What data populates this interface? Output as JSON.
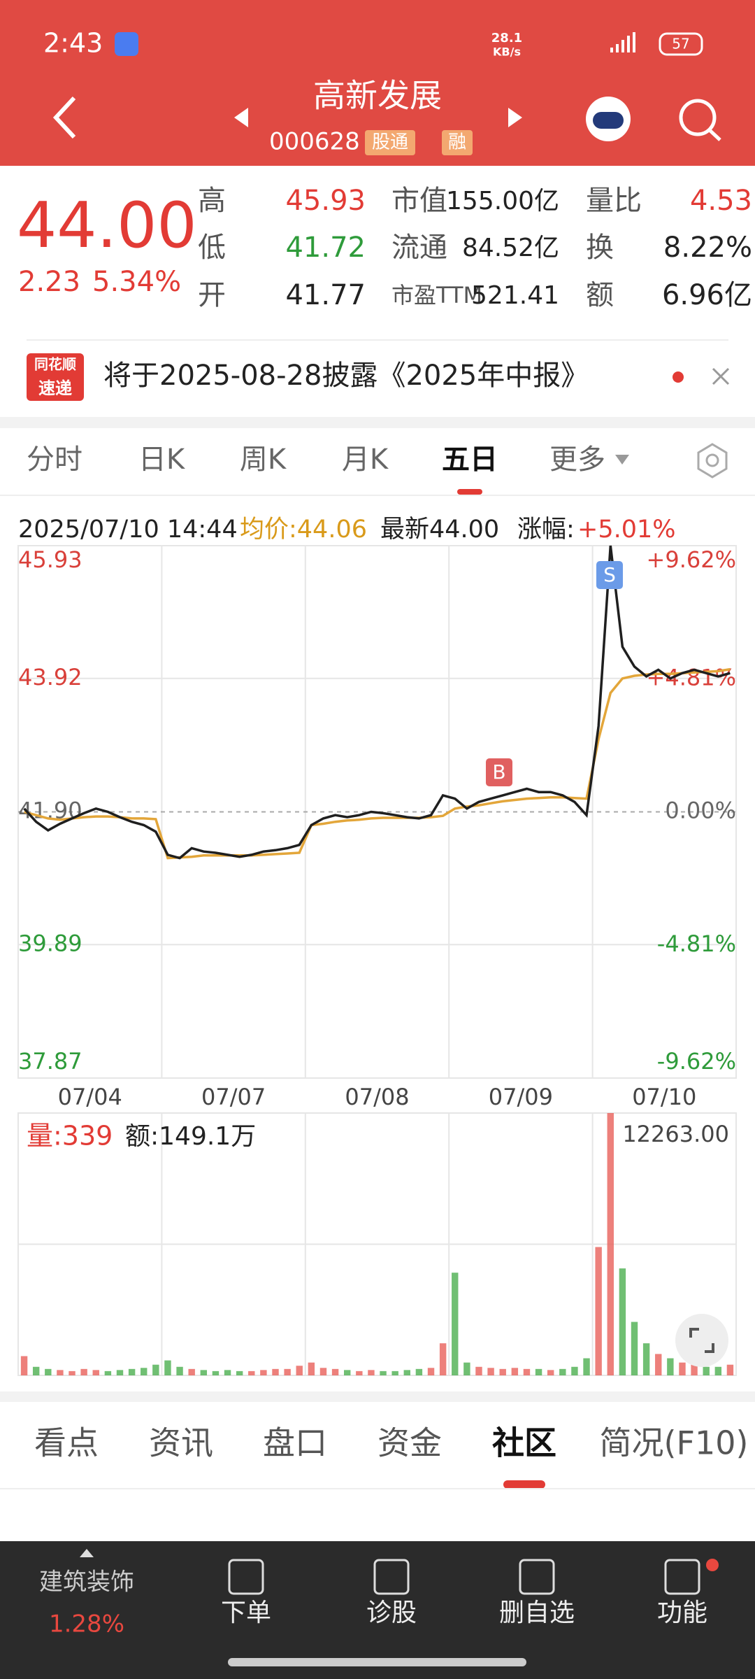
{
  "status_bar": {
    "time": "2:43",
    "net_speed": [
      "28.1",
      "KB/s"
    ],
    "battery": "57"
  },
  "header": {
    "title": "高新发展",
    "code": "000628",
    "tags": [
      "股通",
      "融"
    ]
  },
  "quote": {
    "price": "44.00",
    "change": "2.23",
    "change_pct": "5.34%",
    "stats": [
      {
        "label": "高",
        "value": "45.93",
        "color": "#e23b35"
      },
      {
        "label": "低",
        "value": "41.72",
        "color": "#2e9b3a"
      },
      {
        "label": "开",
        "value": "41.77",
        "color": "#222222"
      },
      {
        "label": "市值",
        "value": "155.00亿",
        "color": "#222222"
      },
      {
        "label": "流通",
        "value": "84.52亿",
        "color": "#222222"
      },
      {
        "label": "市盈TTM",
        "value": "521.41",
        "color": "#222222"
      },
      {
        "label": "量比",
        "value": "4.53",
        "color": "#e23b35"
      },
      {
        "label": "换",
        "value": "8.22%",
        "color": "#222222"
      },
      {
        "label": "额",
        "value": "6.96亿",
        "color": "#222222"
      }
    ]
  },
  "notice": {
    "logo": [
      "同花顺",
      "速递"
    ],
    "text": "将于2025-08-28披露《2025年中报》"
  },
  "chart_tabs": {
    "items": [
      "分时",
      "日K",
      "周K",
      "月K",
      "五日",
      "更多"
    ],
    "active": 4
  },
  "chart_info": {
    "time": "2025/07/10 14:44",
    "avg": "均价:44.06",
    "latest": "最新44.00",
    "change_label": "涨幅:",
    "change": "+5.01%"
  },
  "chart_data": {
    "type": "line",
    "days": [
      "07/04",
      "07/07",
      "07/08",
      "07/09",
      "07/10"
    ],
    "series": [
      {
        "color": "#1f1f1f",
        "values": [
          41.95,
          41.75,
          41.62,
          41.72,
          41.8,
          41.88,
          41.95,
          41.9,
          41.82,
          41.75,
          41.7,
          41.6,
          41.25,
          41.2,
          41.35,
          41.3,
          41.28,
          41.25,
          41.22,
          41.25,
          41.3,
          41.32,
          41.35,
          41.4,
          41.7,
          41.8,
          41.85,
          41.82,
          41.85,
          41.9,
          41.88,
          41.85,
          41.82,
          41.8,
          41.85,
          42.15,
          42.1,
          41.95,
          42.05,
          42.1,
          42.15,
          42.2,
          42.25,
          42.2,
          42.2,
          42.15,
          42.05,
          41.85,
          43.2,
          45.93,
          44.4,
          44.1,
          43.95,
          44.05,
          43.92,
          44.0,
          44.05,
          44.0,
          43.95,
          44.0
        ]
      },
      {
        "color": "#e3a63a",
        "values": [
          41.9,
          41.85,
          41.8,
          41.78,
          41.8,
          41.82,
          41.83,
          41.83,
          41.82,
          41.8,
          41.8,
          41.79,
          41.2,
          41.21,
          41.22,
          41.24,
          41.24,
          41.24,
          41.24,
          41.24,
          41.25,
          41.26,
          41.27,
          41.28,
          41.7,
          41.72,
          41.75,
          41.77,
          41.78,
          41.8,
          41.81,
          41.81,
          41.81,
          41.81,
          41.82,
          41.84,
          41.95,
          41.98,
          42.0,
          42.03,
          42.06,
          42.08,
          42.1,
          42.11,
          42.12,
          42.12,
          42.11,
          42.1,
          43.0,
          43.7,
          43.92,
          43.96,
          43.98,
          43.99,
          43.99,
          44.0,
          44.01,
          44.02,
          44.03,
          44.06
        ]
      }
    ],
    "ylim": [
      37.87,
      45.93
    ],
    "yticks": [
      37.87,
      39.89,
      {
        "value": 41.9,
        "label": "41.90"
      },
      43.92,
      45.93
    ],
    "y2lim": [
      -9.62,
      9.62
    ],
    "y2ticks": [
      {
        "value": -9.62,
        "label": "-9.62%"
      },
      {
        "value": -4.81,
        "label": "-4.81%"
      },
      {
        "value": 0,
        "label": "0.00%"
      },
      {
        "value": 4.81,
        "label": "+4.81%"
      },
      {
        "value": 9.62,
        "label": "+9.62%"
      }
    ],
    "markers": {
      "buy": "B",
      "sell": "S"
    }
  },
  "volume_chart": {
    "type": "bar",
    "volume": "量:339",
    "amount": "额:149.1万",
    "colors": {
      "up": "#e8605a",
      "down": "#4caf50"
    },
    "ylim": [
      0,
      12263
    ],
    "yticks": [
      {
        "value": 12263,
        "label": "12263.00"
      }
    ],
    "values": [
      900,
      400,
      300,
      250,
      200,
      300,
      250,
      200,
      250,
      300,
      350,
      500,
      700,
      400,
      300,
      250,
      200,
      250,
      200,
      200,
      250,
      300,
      300,
      450,
      600,
      350,
      300,
      250,
      200,
      250,
      200,
      200,
      250,
      300,
      350,
      1500,
      4800,
      600,
      400,
      350,
      300,
      350,
      300,
      300,
      250,
      300,
      400,
      800,
      6000,
      12263,
      5000,
      2500,
      1500,
      1000,
      800,
      600,
      500,
      400,
      400,
      500
    ]
  },
  "info_tabs": {
    "items": [
      "看点",
      "资讯",
      "盘口",
      "资金",
      "社区",
      "简况(F10)"
    ],
    "active": 4
  },
  "bottom_nav": {
    "sector": "建筑装饰",
    "sector_change": "1.28%",
    "items": [
      "下单",
      "诊股",
      "删自选",
      "功能"
    ]
  }
}
